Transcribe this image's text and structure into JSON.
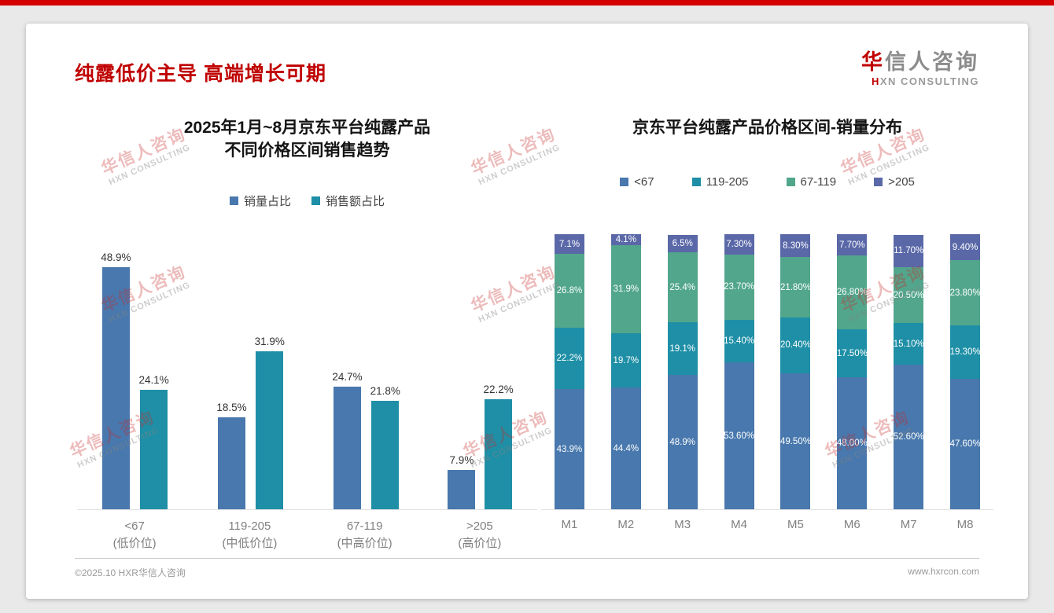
{
  "slide": {
    "title": "纯露低价主导 高端增长可期",
    "logo": {
      "cn_first": "华",
      "cn_rest": "信人咨询",
      "en_first": "H",
      "en_rest": "XN CONSULTING"
    },
    "watermark": {
      "cn": "华信人咨询",
      "en": "HXN CONSULTING"
    },
    "footer": {
      "left": "©2025.10 HXR华信人咨询",
      "right": "www.hxrcon.com"
    }
  },
  "colors": {
    "accent_red": "#c00000",
    "blue": "#4878ad",
    "teal": "#1e8fa6",
    "green": "#52a68c",
    "purple": "#5a68a8",
    "slide_bg": "#ffffff",
    "page_bg": "#e9e9e9"
  },
  "chart_data": [
    {
      "type": "bar",
      "stacked": false,
      "title": "2025年1月~8月京东平台纯露产品 不同价格区间销售趋势",
      "title_lines": [
        "2025年1月~8月京东平台纯露产品",
        "不同价格区间销售趋势"
      ],
      "categories": [
        "<67",
        "119-205",
        "67-119",
        ">205"
      ],
      "category_sublabels": [
        "(低价位)",
        "(中低价位)",
        "(中高价位)",
        "(高价位)"
      ],
      "xlabel": "",
      "ylabel": "",
      "ylim": [
        0,
        55
      ],
      "grid": false,
      "legend_position": "top",
      "series": [
        {
          "name": "销量占比",
          "color": "#4878ad",
          "values": [
            48.9,
            18.5,
            24.7,
            7.9
          ],
          "labels": [
            "48.9%",
            "18.5%",
            "24.7%",
            "7.9%"
          ]
        },
        {
          "name": "销售额占比",
          "color": "#1e8fa6",
          "values": [
            24.1,
            31.9,
            21.8,
            22.2
          ],
          "labels": [
            "24.1%",
            "31.9%",
            "21.8%",
            "22.2%"
          ]
        }
      ]
    },
    {
      "type": "bar",
      "stacked": true,
      "title": "京东平台纯露产品价格区间-销量分布",
      "categories": [
        "M1",
        "M2",
        "M3",
        "M4",
        "M5",
        "M6",
        "M7",
        "M8"
      ],
      "xlabel": "",
      "ylabel": "",
      "ylim": [
        0,
        100
      ],
      "grid": false,
      "legend_position": "top",
      "series": [
        {
          "name": "<67",
          "color": "#4878ad",
          "values": [
            43.9,
            44.4,
            48.9,
            53.6,
            49.5,
            48.0,
            52.6,
            47.6
          ],
          "labels": [
            "43.9%",
            "44.4%",
            "48.9%",
            "53.60%",
            "49.50%",
            "48.00%",
            "52.60%",
            "47.60%"
          ]
        },
        {
          "name": "119-205",
          "color": "#1e8fa6",
          "values": [
            22.2,
            19.7,
            19.1,
            15.4,
            20.4,
            17.5,
            15.1,
            19.3
          ],
          "labels": [
            "22.2%",
            "19.7%",
            "19.1%",
            "15.40%",
            "20.40%",
            "17.50%",
            "15.10%",
            "19.30%"
          ]
        },
        {
          "name": "67-119",
          "color": "#52a68c",
          "values": [
            26.8,
            31.9,
            25.4,
            23.7,
            21.8,
            26.8,
            20.5,
            23.8
          ],
          "labels": [
            "26.8%",
            "31.9%",
            "25.4%",
            "23.70%",
            "21.80%",
            "26.80%",
            "20.50%",
            "23.80%"
          ]
        },
        {
          "name": ">205",
          "color": "#5a68a8",
          "values": [
            7.1,
            4.1,
            6.5,
            7.3,
            8.3,
            7.7,
            11.7,
            9.4
          ],
          "labels": [
            "7.1%",
            "4.1%",
            "6.5%",
            "7.30%",
            "8.30%",
            "7.70%",
            "11.70%",
            "9.40%"
          ]
        }
      ]
    }
  ]
}
